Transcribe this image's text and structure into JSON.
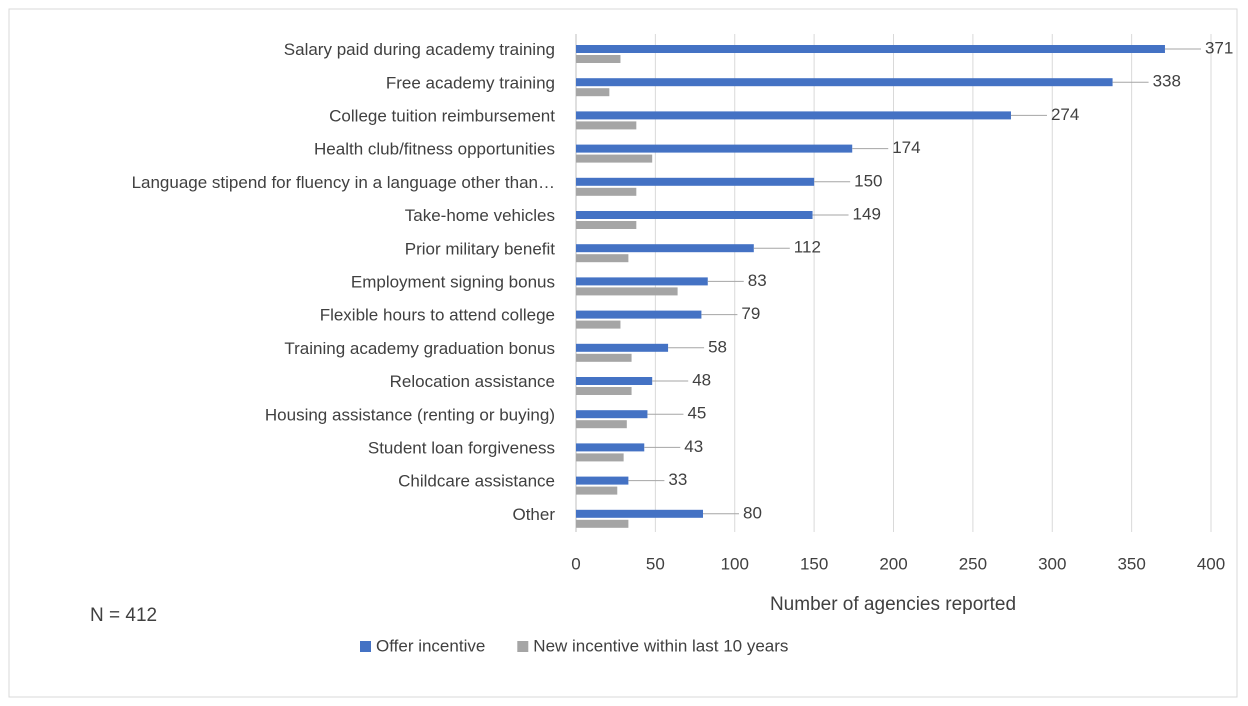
{
  "chart_data": {
    "type": "bar",
    "orientation": "horizontal",
    "xlabel": "Number of agencies reported",
    "annotation": "N = 412",
    "categories": [
      "Salary paid during academy training",
      "Free academy training",
      "College tuition reimbursement",
      "Health club/fitness opportunities",
      "Language stipend for fluency in a language other than…",
      "Take-home vehicles",
      "Prior military benefit",
      "Employment signing bonus",
      "Flexible hours to attend college",
      "Training academy graduation bonus",
      "Relocation assistance",
      "Housing assistance (renting or buying)",
      "Student loan forgiveness",
      "Childcare assistance",
      "Other"
    ],
    "series": [
      {
        "name": "Offer incentive",
        "color": "#4472c4",
        "values": [
          371,
          338,
          274,
          174,
          150,
          149,
          112,
          83,
          79,
          58,
          48,
          45,
          43,
          33,
          80
        ],
        "data_labels": true
      },
      {
        "name": "New incentive within last 10 years",
        "color": "#a5a5a5",
        "values": [
          28,
          21,
          38,
          48,
          38,
          38,
          33,
          64,
          28,
          35,
          35,
          32,
          30,
          26,
          33
        ]
      }
    ],
    "xlim": [
      0,
      400
    ],
    "xticks": [
      0,
      50,
      100,
      150,
      200,
      250,
      300,
      350,
      400
    ],
    "grid": true,
    "legend": "bottom"
  }
}
